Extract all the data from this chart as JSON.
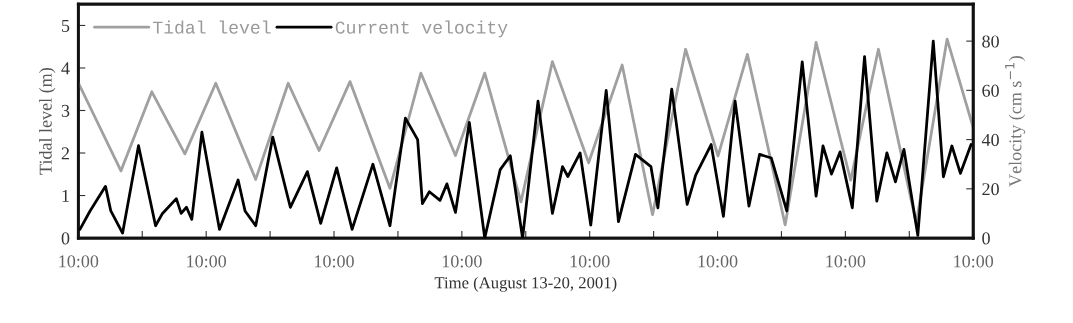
{
  "chart_data": {
    "type": "line",
    "xlabel": "Time (August 13-20, 2001)",
    "ylabel": "Tidal level (m)",
    "y2label": "Velocity (cm s$^{−1}$)",
    "xlim": [
      "2001-08-13T10:00",
      "2001-08-20T10:00"
    ],
    "xticks": [
      {
        "value": "2001-08-13T10:00",
        "label": "10:00"
      },
      {
        "value": "2001-08-13T22:00",
        "label": null
      },
      {
        "value": "2001-08-14T10:00",
        "label": "10:00"
      },
      {
        "value": "2001-08-14T22:00",
        "label": null
      },
      {
        "value": "2001-08-15T10:00",
        "label": "10:00"
      },
      {
        "value": "2001-08-15T22:00",
        "label": null
      },
      {
        "value": "2001-08-16T10:00",
        "label": "10:00"
      },
      {
        "value": "2001-08-16T22:00",
        "label": null
      },
      {
        "value": "2001-08-17T10:00",
        "label": "10:00"
      },
      {
        "value": "2001-08-17T22:00",
        "label": null
      },
      {
        "value": "2001-08-18T10:00",
        "label": "10:00"
      },
      {
        "value": "2001-08-18T22:00",
        "label": null
      },
      {
        "value": "2001-08-19T10:00",
        "label": "10:00"
      },
      {
        "value": "2001-08-19T22:00",
        "label": null
      },
      {
        "value": "2001-08-20T10:00",
        "label": "10:00"
      }
    ],
    "ylim": [
      0,
      5.5
    ],
    "yticks": [
      0,
      1,
      2,
      3,
      4,
      5
    ],
    "y2lim": [
      0,
      95
    ],
    "y2ticks": [
      0,
      20,
      40,
      60,
      80
    ],
    "legend": "top left",
    "grid": false,
    "marker": "none",
    "line_style": "solid",
    "series": [
      {
        "name": "Tidal level",
        "color": "#a0a0a0",
        "x": [
          "2001-08-13T10:00",
          "2001-08-13T18:00",
          "2001-08-13T23:48",
          "2001-08-14T06:00",
          "2001-08-14T11:48",
          "2001-08-14T19:18",
          "2001-08-15T01:24",
          "2001-08-15T07:12",
          "2001-08-15T13:00",
          "2001-08-15T20:30",
          "2001-08-16T02:18",
          "2001-08-16T08:48",
          "2001-08-16T14:18",
          "2001-08-16T21:06",
          "2001-08-17T03:00",
          "2001-08-17T09:48",
          "2001-08-17T16:06",
          "2001-08-17T21:48",
          "2001-08-18T04:00",
          "2001-08-18T10:06",
          "2001-08-18T15:36",
          "2001-08-18T22:42",
          "2001-08-19T04:30",
          "2001-08-19T11:00",
          "2001-08-19T16:12",
          "2001-08-19T23:18",
          "2001-08-20T05:06",
          "2001-08-20T10:00"
        ],
        "values": [
          3.65,
          1.58,
          3.44,
          1.98,
          3.64,
          1.38,
          3.64,
          2.06,
          3.68,
          1.17,
          3.88,
          1.94,
          3.88,
          0.85,
          4.15,
          1.77,
          4.07,
          0.55,
          4.44,
          1.93,
          4.32,
          0.31,
          4.6,
          1.36,
          4.44,
          0.35,
          4.68,
          2.6
        ]
      },
      {
        "name": "Current velocity",
        "color": "#000000",
        "axis": "y2",
        "x": [
          "2001-08-13T10:18",
          "2001-08-13T12:12",
          "2001-08-13T15:06",
          "2001-08-13T16:06",
          "2001-08-13T18:18",
          "2001-08-13T21:18",
          "2001-08-14T00:30",
          "2001-08-14T01:48",
          "2001-08-14T04:24",
          "2001-08-14T05:18",
          "2001-08-14T06:18",
          "2001-08-14T07:18",
          "2001-08-14T09:12",
          "2001-08-14T12:30",
          "2001-08-14T16:00",
          "2001-08-14T17:18",
          "2001-08-14T19:18",
          "2001-08-14T22:30",
          "2001-08-15T01:48",
          "2001-08-15T05:00",
          "2001-08-15T07:30",
          "2001-08-15T10:30",
          "2001-08-15T13:24",
          "2001-08-15T17:18",
          "2001-08-15T20:30",
          "2001-08-15T23:24",
          "2001-08-16T01:42",
          "2001-08-16T02:36",
          "2001-08-16T03:54",
          "2001-08-16T05:54",
          "2001-08-16T07:12",
          "2001-08-16T08:48",
          "2001-08-16T11:24",
          "2001-08-16T14:18",
          "2001-08-16T17:12",
          "2001-08-16T19:06",
          "2001-08-16T21:24",
          "2001-08-17T00:18",
          "2001-08-17T03:00",
          "2001-08-17T04:54",
          "2001-08-17T05:54",
          "2001-08-17T08:12",
          "2001-08-17T10:12",
          "2001-08-17T13:06",
          "2001-08-17T15:24",
          "2001-08-17T18:36",
          "2001-08-17T21:30",
          "2001-08-17T22:48",
          "2001-08-18T01:24",
          "2001-08-18T04:18",
          "2001-08-18T05:54",
          "2001-08-18T08:48",
          "2001-08-18T11:06",
          "2001-08-18T13:18",
          "2001-08-18T15:54",
          "2001-08-18T17:54",
          "2001-08-18T20:06",
          "2001-08-18T23:00",
          "2001-08-19T01:54",
          "2001-08-19T04:30",
          "2001-08-19T05:48",
          "2001-08-19T07:24",
          "2001-08-19T09:00",
          "2001-08-19T11:18",
          "2001-08-19T13:36",
          "2001-08-19T15:54",
          "2001-08-19T17:48",
          "2001-08-19T19:24",
          "2001-08-19T21:00",
          "2001-08-19T23:36",
          "2001-08-20T02:30",
          "2001-08-20T04:24",
          "2001-08-20T06:00",
          "2001-08-20T07:36",
          "2001-08-20T09:36"
        ],
        "values": [
          3.5,
          11,
          21,
          11,
          2,
          37.5,
          5,
          10,
          16,
          10,
          12.5,
          7.6,
          43,
          3.5,
          23.6,
          11,
          5,
          41,
          12.5,
          27,
          6,
          28.5,
          3.5,
          30,
          5,
          48.7,
          40,
          14,
          18.8,
          15.3,
          22,
          10.4,
          47,
          0,
          27.8,
          33.4,
          0,
          55.6,
          10,
          29,
          25,
          34.6,
          5.3,
          60,
          6.7,
          34,
          29,
          12.3,
          60.5,
          13.7,
          25.6,
          38,
          8.8,
          55.6,
          13,
          34,
          32.5,
          11,
          71.6,
          17,
          37.4,
          26,
          35,
          12.3,
          73.7,
          15,
          34.6,
          22.8,
          36,
          1.1,
          80,
          24.9,
          37.4,
          26.3,
          38
        ]
      }
    ]
  }
}
